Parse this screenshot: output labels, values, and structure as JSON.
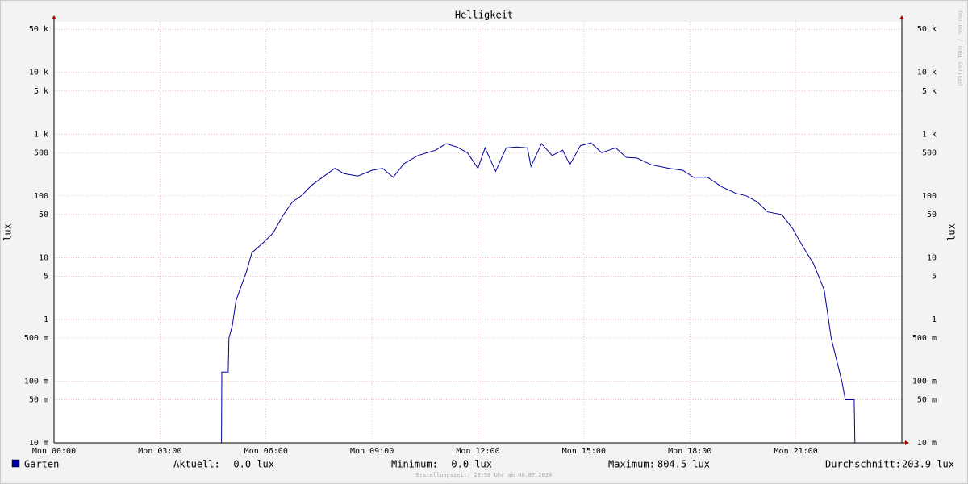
{
  "chart_data": {
    "type": "line",
    "title": "Helligkeit",
    "y_label": "lux",
    "watermark": "RRDTOOL / TOBI OETIKER",
    "footer": "Erstellungszeit: 23:58 Uhr am 08.07.2024",
    "log_scale": true,
    "grid": true,
    "xlim": [
      0,
      24
    ],
    "xticks": [
      {
        "value": 0,
        "label": "Mon 00:00"
      },
      {
        "value": 3,
        "label": "Mon 03:00"
      },
      {
        "value": 6,
        "label": "Mon 06:00"
      },
      {
        "value": 9,
        "label": "Mon 09:00"
      },
      {
        "value": 12,
        "label": "Mon 12:00"
      },
      {
        "value": 15,
        "label": "Mon 15:00"
      },
      {
        "value": 18,
        "label": "Mon 18:00"
      },
      {
        "value": 21,
        "label": "Mon 21:00"
      }
    ],
    "ylim": [
      0.01,
      66000
    ],
    "yticks": [
      {
        "value": 0.01,
        "label": "10 m"
      },
      {
        "value": 0.05,
        "label": "50 m"
      },
      {
        "value": 0.1,
        "label": "100 m"
      },
      {
        "value": 0.5,
        "label": "500 m"
      },
      1,
      5,
      10,
      50,
      100,
      500,
      {
        "value": 1000,
        "label": "1 k"
      },
      {
        "value": 5000,
        "label": "5 k"
      },
      {
        "value": 10000,
        "label": "10 k"
      },
      {
        "value": 50000,
        "label": "50 k"
      }
    ],
    "x": [
      0,
      4.74,
      4.75,
      4.93,
      4.95,
      5.05,
      5.15,
      5.3,
      5.45,
      5.6,
      5.9,
      6.2,
      6.5,
      6.75,
      7.0,
      7.3,
      7.6,
      7.95,
      8.2,
      8.6,
      9.0,
      9.3,
      9.6,
      9.9,
      10.3,
      10.8,
      11.1,
      11.4,
      11.7,
      12.0,
      12.2,
      12.5,
      12.8,
      13.1,
      13.4,
      13.5,
      13.8,
      14.1,
      14.4,
      14.6,
      14.9,
      15.2,
      15.5,
      15.9,
      16.2,
      16.5,
      16.9,
      17.4,
      17.8,
      18.1,
      18.5,
      18.9,
      19.3,
      19.6,
      19.9,
      20.2,
      20.6,
      20.9,
      21.2,
      21.5,
      21.8,
      22.0,
      22.3,
      22.4,
      22.65,
      22.67,
      24
    ],
    "series": [
      {
        "name": "Garten",
        "color": "#0000a0",
        "values": [
          0.01,
          0.01,
          0.14,
          0.14,
          0.5,
          0.8,
          2,
          3.5,
          6,
          12,
          17,
          25,
          50,
          80,
          100,
          150,
          200,
          280,
          230,
          210,
          260,
          280,
          200,
          330,
          450,
          550,
          700,
          620,
          500,
          280,
          600,
          250,
          600,
          620,
          600,
          300,
          700,
          450,
          550,
          320,
          650,
          720,
          500,
          600,
          420,
          410,
          320,
          280,
          260,
          200,
          200,
          140,
          110,
          100,
          80,
          55,
          50,
          30,
          15,
          8,
          3,
          0.5,
          0.1,
          0.05,
          0.05,
          0.01,
          0.01
        ]
      }
    ],
    "stats": [
      {
        "label": "Aktuell:",
        "value": "0.0 lux"
      },
      {
        "label": "Minimum:",
        "value": "0.0 lux"
      },
      {
        "label": "Maximum:",
        "value": "804.5 lux"
      },
      {
        "label": "Durchschnitt:",
        "value": "203.9 lux"
      }
    ]
  }
}
